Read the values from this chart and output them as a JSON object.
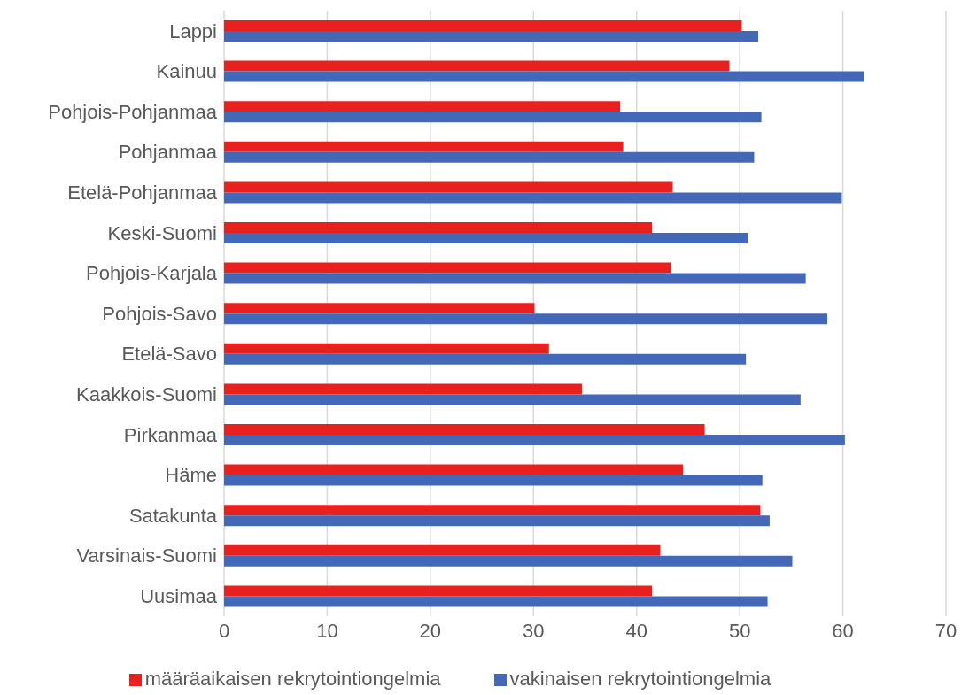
{
  "chart_data": {
    "type": "bar",
    "orientation": "horizontal",
    "categories": [
      "Lappi",
      "Kainuu",
      "Pohjois-Pohjanmaa",
      "Pohjanmaa",
      "Etelä-Pohjanmaa",
      "Keski-Suomi",
      "Pohjois-Karjala",
      "Pohjois-Savo",
      "Etelä-Savo",
      "Kaakkois-Suomi",
      "Pirkanmaa",
      "Häme",
      "Satakunta",
      "Varsinais-Suomi",
      "Uusimaa"
    ],
    "series": [
      {
        "name": "määräaikaisen rekrytointiongelmia",
        "color": "#e8201e",
        "values": [
          50.2,
          49.0,
          38.4,
          38.7,
          43.5,
          41.5,
          43.3,
          30.1,
          31.5,
          34.7,
          46.6,
          44.5,
          52.0,
          42.3,
          41.5
        ]
      },
      {
        "name": "vakinaisen rekrytointiongelmia",
        "color": "#4468b8",
        "values": [
          51.8,
          62.1,
          52.1,
          51.4,
          59.9,
          50.8,
          56.4,
          58.5,
          50.6,
          55.9,
          60.2,
          52.2,
          52.9,
          55.1,
          52.7
        ]
      }
    ],
    "xlim": [
      0,
      70
    ],
    "xticks": [
      0,
      10,
      20,
      30,
      40,
      50,
      60,
      70
    ],
    "grid": "x",
    "legend": "bottom"
  }
}
